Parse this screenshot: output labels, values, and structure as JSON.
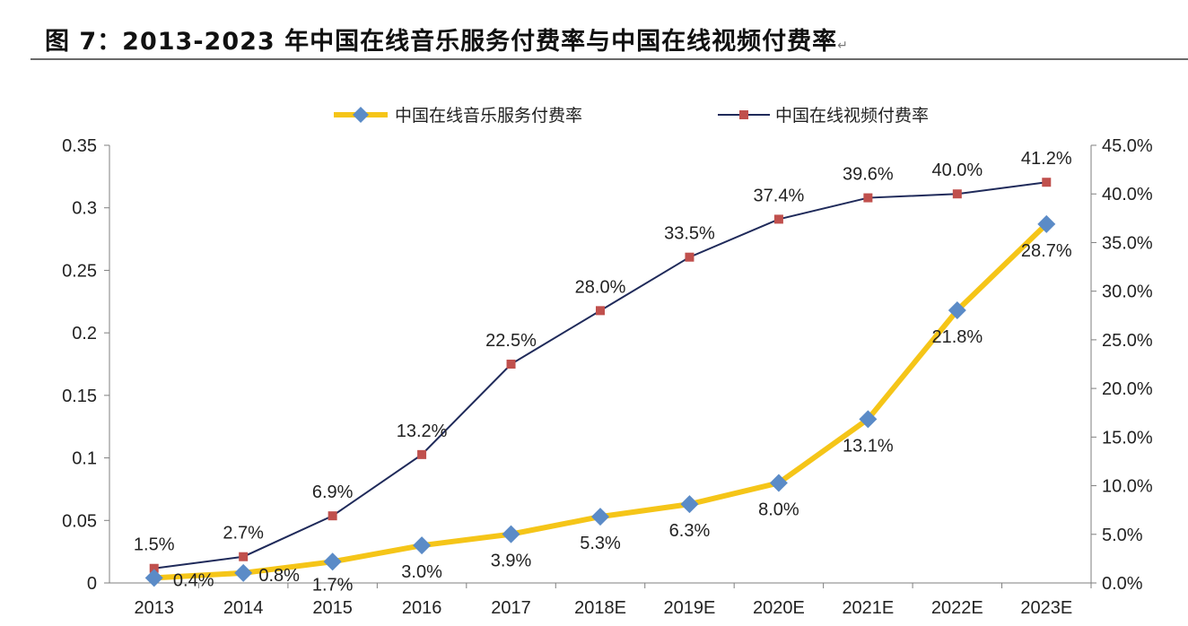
{
  "title": "图 7：2013-2023 年中国在线音乐服务付费率与中国在线视频付费率",
  "title_mark": "↵",
  "chart_data": {
    "type": "line",
    "categories": [
      "2013",
      "2014",
      "2015",
      "2016",
      "2017",
      "2018E",
      "2019E",
      "2020E",
      "2021E",
      "2022E",
      "2023E"
    ],
    "y_left": {
      "ticks": [
        "0",
        "0.05",
        "0.1",
        "0.15",
        "0.2",
        "0.25",
        "0.3",
        "0.35"
      ],
      "range": [
        0,
        0.35
      ]
    },
    "y_right": {
      "ticks": [
        "0.0%",
        "5.0%",
        "10.0%",
        "15.0%",
        "20.0%",
        "25.0%",
        "30.0%",
        "35.0%",
        "40.0%",
        "45.0%"
      ],
      "range": [
        0,
        45
      ]
    },
    "legend_position": "top",
    "series": [
      {
        "name": "中国在线音乐服务付费率",
        "axis": "left",
        "color": "#f5c518",
        "marker_color": "#5b8bc7",
        "marker": "diamond",
        "values": [
          0.004,
          0.008,
          0.017,
          0.03,
          0.039,
          0.053,
          0.063,
          0.08,
          0.131,
          0.218,
          0.287
        ],
        "labels": [
          "0.4%",
          "0.8%",
          "1.7%",
          "3.0%",
          "3.9%",
          "5.3%",
          "6.3%",
          "8.0%",
          "13.1%",
          "21.8%",
          "28.7%"
        ]
      },
      {
        "name": "中国在线视频付费率",
        "axis": "right",
        "color": "#1f2a5a",
        "marker_color": "#c0504d",
        "marker": "square",
        "values": [
          1.5,
          2.7,
          6.9,
          13.2,
          22.5,
          28.0,
          33.5,
          37.4,
          39.6,
          40.0,
          41.2
        ],
        "labels": [
          "1.5%",
          "2.7%",
          "6.9%",
          "13.2%",
          "22.5%",
          "28.0%",
          "33.5%",
          "37.4%",
          "39.6%",
          "40.0%",
          "41.2%"
        ]
      }
    ]
  }
}
